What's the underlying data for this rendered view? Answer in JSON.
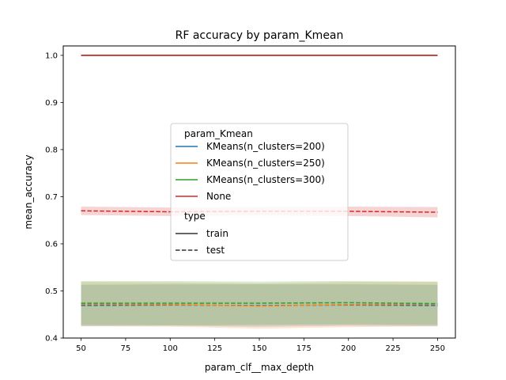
{
  "chart_data": {
    "type": "line",
    "title": "RF accuracy by param_Kmean",
    "xlabel": "param_clf__max_depth",
    "ylabel": "mean_accuracy",
    "xlim": [
      40,
      260
    ],
    "ylim": [
      0.4,
      1.02
    ],
    "x_ticks": [
      50,
      75,
      100,
      125,
      150,
      175,
      200,
      225,
      250
    ],
    "x_tick_labels": [
      "50",
      "75",
      "100",
      "125",
      "150",
      "175",
      "200",
      "225",
      "250"
    ],
    "y_ticks": [
      0.4,
      0.5,
      0.6,
      0.7,
      0.8,
      0.9,
      1.0
    ],
    "y_tick_labels": [
      "0.4",
      "0.5",
      "0.6",
      "0.7",
      "0.8",
      "0.9",
      "1.0"
    ],
    "grid": false,
    "x": [
      50,
      100,
      150,
      200,
      250
    ],
    "series": [
      {
        "name": "KMeans(n_clusters=200)",
        "color": "#1f77b4",
        "train": [
          1.0,
          1.0,
          1.0,
          1.0,
          1.0
        ],
        "test": [
          0.469,
          0.47,
          0.469,
          0.47,
          0.469
        ],
        "test_ci_low": [
          0.425,
          0.426,
          0.424,
          0.426,
          0.425
        ],
        "test_ci_high": [
          0.513,
          0.514,
          0.514,
          0.514,
          0.513
        ]
      },
      {
        "name": "KMeans(n_clusters=250)",
        "color": "#ff7f0e",
        "train": [
          1.0,
          1.0,
          1.0,
          1.0,
          1.0
        ],
        "test": [
          0.472,
          0.471,
          0.468,
          0.471,
          0.472
        ],
        "test_ci_low": [
          0.425,
          0.424,
          0.42,
          0.423,
          0.425
        ],
        "test_ci_high": [
          0.519,
          0.518,
          0.516,
          0.519,
          0.519
        ]
      },
      {
        "name": "KMeans(n_clusters=300)",
        "color": "#2ca02c",
        "train": [
          1.0,
          1.0,
          1.0,
          1.0,
          1.0
        ],
        "test": [
          0.474,
          0.474,
          0.474,
          0.475,
          0.473
        ],
        "test_ci_low": [
          0.428,
          0.427,
          0.428,
          0.429,
          0.428
        ],
        "test_ci_high": [
          0.521,
          0.521,
          0.52,
          0.521,
          0.52
        ]
      },
      {
        "name": "None",
        "color": "#d62728",
        "train": [
          1.0,
          1.0,
          1.0,
          1.0,
          1.0
        ],
        "test": [
          0.67,
          0.668,
          0.669,
          0.669,
          0.667
        ],
        "test_ci_low": [
          0.661,
          0.659,
          0.66,
          0.659,
          0.656
        ],
        "test_ci_high": [
          0.679,
          0.677,
          0.678,
          0.679,
          0.678
        ]
      }
    ],
    "legend": {
      "location": "center",
      "hue_title": "param_Kmean",
      "style_title": "type",
      "styles": [
        {
          "label": "train",
          "dash": "solid"
        },
        {
          "label": "test",
          "dash": "dashed"
        }
      ]
    }
  }
}
